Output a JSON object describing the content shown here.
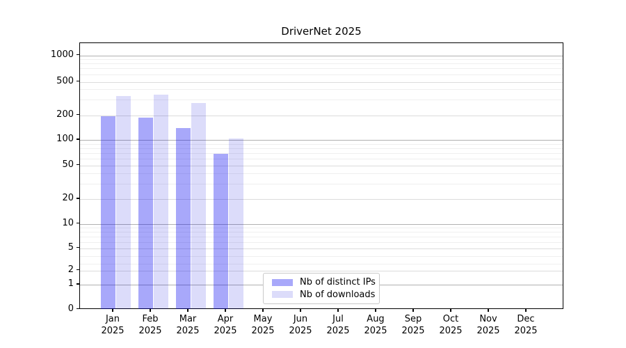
{
  "chart_data": {
    "type": "bar",
    "title": "DriverNet 2025",
    "categories": [
      "Jan",
      "Feb",
      "Mar",
      "Apr",
      "May",
      "Jun",
      "Jul",
      "Aug",
      "Sep",
      "Oct",
      "Nov",
      "Dec"
    ],
    "category_year": "2025",
    "series": [
      {
        "name": "Nb of distinct IPs",
        "color": "#a8a8fa",
        "values": [
          195,
          185,
          140,
          68,
          0,
          0,
          0,
          0,
          0,
          0,
          0,
          0
        ]
      },
      {
        "name": "Nb of downloads",
        "color": "#dcdcfa",
        "values": [
          335,
          350,
          280,
          105,
          0,
          0,
          0,
          0,
          0,
          0,
          0,
          0
        ]
      }
    ],
    "yaxis": {
      "scale": "symlog",
      "ticks": [
        0,
        1,
        2,
        5,
        10,
        20,
        50,
        100,
        200,
        500,
        1000
      ],
      "range": [
        0,
        1400
      ]
    },
    "grid": "on",
    "legend": {
      "position": "bottom-center",
      "border": true
    },
    "colors": {
      "grid_decade": "#b0b0b0",
      "grid_major": "#dcdcdc",
      "grid_minor": "#efefef",
      "spine": "#000000"
    }
  }
}
